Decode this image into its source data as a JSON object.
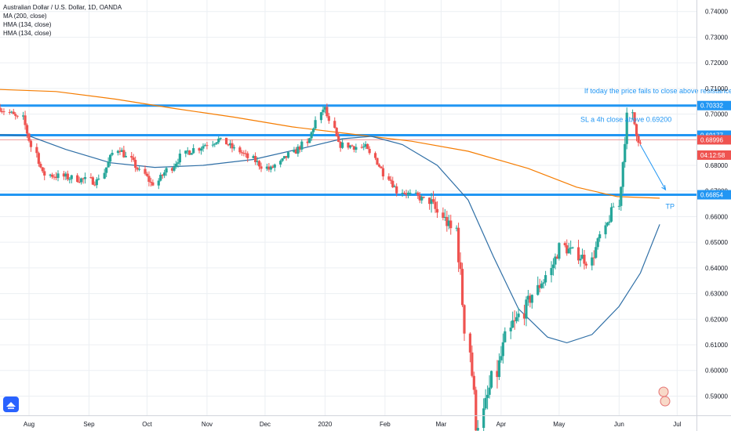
{
  "legend": {
    "title": "Australian Dollar / U.S. Dollar, 1D, OANDA",
    "indicators": [
      "MA (200, close)",
      "HMA (134, close)",
      "HMA (134, close)"
    ]
  },
  "colors": {
    "up": "#26a69a",
    "down": "#ef5350",
    "level": "#2196f3",
    "ma": "#f57c00",
    "hma": "#2f6fa6",
    "grid": "#eceff3",
    "price_line": "#ef5350",
    "axis_text": "#131722"
  },
  "chart_data": {
    "type": "candlestick",
    "title": "Australian Dollar / U.S. Dollar, 1D, OANDA",
    "y_ticks": [
      "0.74000",
      "0.73000",
      "0.72000",
      "0.71000",
      "0.70000",
      "0.69000",
      "0.68000",
      "0.67000",
      "0.66000",
      "0.65000",
      "0.64000",
      "0.63000",
      "0.62000",
      "0.61000",
      "0.60000",
      "0.59000"
    ],
    "ylim": [
      0.5825,
      0.7445
    ],
    "x_ticks": [
      "Aug",
      "Sep",
      "Oct",
      "Nov",
      "Dec",
      "2020",
      "Feb",
      "Mar",
      "Apr",
      "May",
      "Jun",
      "Jul"
    ],
    "xlim": [
      "2019-07-17",
      "2020-07-11"
    ],
    "grid": true,
    "price_labels": [
      {
        "text": "0.70332",
        "value": 0.70332,
        "style": "level"
      },
      {
        "text": "0.69177",
        "value": 0.69177,
        "style": "level"
      },
      {
        "text": "0.68996",
        "value": 0.68996,
        "style": "current"
      },
      {
        "text": "04:12:58",
        "value": 0.684,
        "style": "countdown"
      },
      {
        "text": "0.66854",
        "value": 0.66854,
        "style": "level"
      }
    ],
    "horizontal_levels": [
      0.70332,
      0.69177,
      0.66854
    ],
    "current_price": 0.68996,
    "annotations": [
      {
        "text": "If today the price fails to close above resistance.",
        "date": "2020-05-14",
        "value": 0.7081
      },
      {
        "text": "SL a 4h close above 0.69200",
        "date": "2020-05-12",
        "value": 0.697
      },
      {
        "text": "TP",
        "date": "2020-06-25",
        "value": 0.663
      }
    ],
    "projection": [
      [
        "2020-06-12",
        0.688
      ],
      [
        "2020-06-25",
        0.6705
      ]
    ],
    "series": [
      {
        "name": "MA (200, close)",
        "kind": "line",
        "points": [
          [
            "2019-07-17",
            0.7096
          ],
          [
            "2019-08-15",
            0.7088
          ],
          [
            "2019-09-15",
            0.7058
          ],
          [
            "2019-10-15",
            0.7022
          ],
          [
            "2019-11-15",
            0.6988
          ],
          [
            "2019-12-15",
            0.695
          ],
          [
            "2020-01-15",
            0.6922
          ],
          [
            "2020-02-15",
            0.6894
          ],
          [
            "2020-03-15",
            0.6855
          ],
          [
            "2020-04-15",
            0.6788
          ],
          [
            "2020-05-10",
            0.6715
          ],
          [
            "2020-05-31",
            0.6678
          ],
          [
            "2020-06-22",
            0.6672
          ]
        ]
      },
      {
        "name": "HMA (134, close)",
        "kind": "line",
        "points": [
          [
            "2019-07-17",
            0.692
          ],
          [
            "2019-08-01",
            0.6915
          ],
          [
            "2019-08-20",
            0.6862
          ],
          [
            "2019-09-12",
            0.681
          ],
          [
            "2019-10-05",
            0.6792
          ],
          [
            "2019-10-30",
            0.68
          ],
          [
            "2019-11-25",
            0.6823
          ],
          [
            "2019-12-20",
            0.6866
          ],
          [
            "2020-01-10",
            0.6904
          ],
          [
            "2020-01-25",
            0.6913
          ],
          [
            "2020-02-10",
            0.6881
          ],
          [
            "2020-02-28",
            0.68
          ],
          [
            "2020-03-15",
            0.6665
          ],
          [
            "2020-03-28",
            0.6445
          ],
          [
            "2020-04-10",
            0.624
          ],
          [
            "2020-04-25",
            0.613
          ],
          [
            "2020-05-05",
            0.6108
          ],
          [
            "2020-05-18",
            0.614
          ],
          [
            "2020-06-01",
            0.625
          ],
          [
            "2020-06-12",
            0.638
          ],
          [
            "2020-06-22",
            0.657
          ]
        ]
      },
      {
        "name": "AUDUSD",
        "kind": "candles",
        "segments": [
          {
            "from": "2019-07-17",
            "to": "2019-07-27",
            "start": 0.7025,
            "end": 0.6982,
            "wiggle": 0.0028,
            "wick": 0.0016
          },
          {
            "from": "2019-07-28",
            "to": "2019-08-08",
            "start": 0.6982,
            "end": 0.6765,
            "wiggle": 0.003,
            "wick": 0.002
          },
          {
            "from": "2019-08-09",
            "to": "2019-09-04",
            "start": 0.6765,
            "end": 0.6738,
            "wiggle": 0.003,
            "wick": 0.002
          },
          {
            "from": "2019-09-05",
            "to": "2019-09-16",
            "start": 0.6738,
            "end": 0.6865,
            "wiggle": 0.003,
            "wick": 0.0018
          },
          {
            "from": "2019-09-17",
            "to": "2019-10-03",
            "start": 0.6865,
            "end": 0.673,
            "wiggle": 0.0028,
            "wick": 0.0018
          },
          {
            "from": "2019-10-04",
            "to": "2019-10-22",
            "start": 0.673,
            "end": 0.6855,
            "wiggle": 0.0028,
            "wick": 0.0018
          },
          {
            "from": "2019-10-23",
            "to": "2019-11-06",
            "start": 0.6855,
            "end": 0.69,
            "wiggle": 0.003,
            "wick": 0.0016
          },
          {
            "from": "2019-11-07",
            "to": "2019-12-03",
            "start": 0.69,
            "end": 0.6785,
            "wiggle": 0.0028,
            "wick": 0.0016
          },
          {
            "from": "2019-12-04",
            "to": "2019-12-20",
            "start": 0.6785,
            "end": 0.688,
            "wiggle": 0.0028,
            "wick": 0.0016
          },
          {
            "from": "2019-12-21",
            "to": "2019-12-31",
            "start": 0.688,
            "end": 0.702,
            "wiggle": 0.0026,
            "wick": 0.0018
          },
          {
            "from": "2020-01-01",
            "to": "2020-01-08",
            "start": 0.702,
            "end": 0.688,
            "wiggle": 0.0026,
            "wick": 0.0016
          },
          {
            "from": "2020-01-09",
            "to": "2020-01-21",
            "start": 0.688,
            "end": 0.687,
            "wiggle": 0.0028,
            "wick": 0.0016
          },
          {
            "from": "2020-01-22",
            "to": "2020-02-07",
            "start": 0.687,
            "end": 0.67,
            "wiggle": 0.0028,
            "wick": 0.0016
          },
          {
            "from": "2020-02-08",
            "to": "2020-02-22",
            "start": 0.67,
            "end": 0.6665,
            "wiggle": 0.0028,
            "wick": 0.0016
          },
          {
            "from": "2020-02-23",
            "to": "2020-03-08",
            "start": 0.6665,
            "end": 0.655,
            "wiggle": 0.005,
            "wick": 0.004
          },
          {
            "from": "2020-03-09",
            "to": "2020-03-19",
            "start": 0.655,
            "end": 0.58,
            "wiggle": 0.009,
            "wick": 0.006
          },
          {
            "from": "2020-03-20",
            "to": "2020-04-07",
            "start": 0.58,
            "end": 0.618,
            "wiggle": 0.008,
            "wick": 0.005
          },
          {
            "from": "2020-04-08",
            "to": "2020-04-22",
            "start": 0.618,
            "end": 0.635,
            "wiggle": 0.006,
            "wick": 0.004
          },
          {
            "from": "2020-04-23",
            "to": "2020-05-01",
            "start": 0.635,
            "end": 0.648,
            "wiggle": 0.005,
            "wick": 0.003
          },
          {
            "from": "2020-05-02",
            "to": "2020-05-15",
            "start": 0.648,
            "end": 0.643,
            "wiggle": 0.005,
            "wick": 0.003
          },
          {
            "from": "2020-05-16",
            "to": "2020-05-31",
            "start": 0.643,
            "end": 0.664,
            "wiggle": 0.004,
            "wick": 0.003
          },
          {
            "from": "2020-06-01",
            "to": "2020-06-06",
            "start": 0.664,
            "end": 0.699,
            "wiggle": 0.004,
            "wick": 0.003
          },
          {
            "from": "2020-06-07",
            "to": "2020-06-13",
            "start": 0.699,
            "end": 0.688,
            "wiggle": 0.005,
            "wick": 0.004
          }
        ]
      }
    ]
  }
}
